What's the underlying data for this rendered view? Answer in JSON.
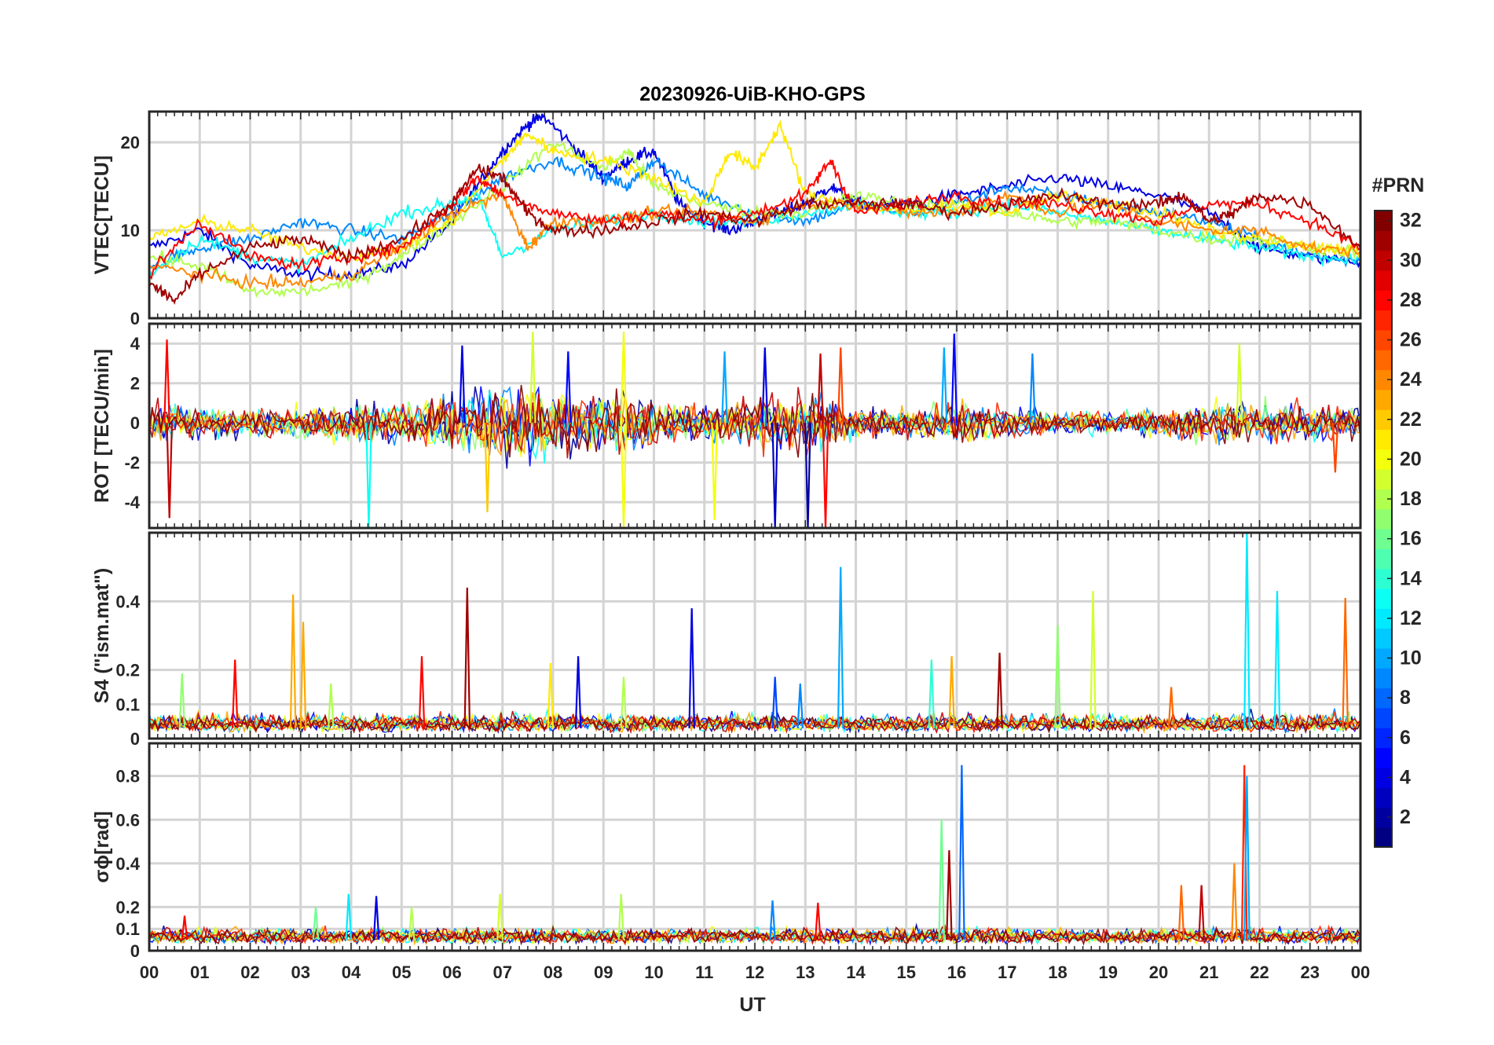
{
  "figure": {
    "title": "20230926-UiB-KHO-GPS",
    "x_label": "UT",
    "x_tick_labels": [
      "00",
      "01",
      "02",
      "03",
      "04",
      "05",
      "06",
      "07",
      "08",
      "09",
      "10",
      "11",
      "12",
      "13",
      "14",
      "15",
      "16",
      "17",
      "18",
      "19",
      "20",
      "21",
      "22",
      "23",
      "00"
    ],
    "colorbar": {
      "label": "#PRN",
      "colormap": "jet",
      "range": [
        1,
        32
      ],
      "tick_labels": [
        "2",
        "4",
        "6",
        "8",
        "10",
        "12",
        "14",
        "16",
        "18",
        "20",
        "22",
        "24",
        "26",
        "28",
        "30",
        "32"
      ],
      "tick_values": [
        2,
        4,
        6,
        8,
        10,
        12,
        14,
        16,
        18,
        20,
        22,
        24,
        26,
        28,
        30,
        32
      ]
    }
  },
  "chart_data": [
    {
      "type": "line",
      "title": "20230926-UiB-KHO-GPS",
      "xlabel": "UT",
      "ylabel": "VTEC[TECU]",
      "xlim": [
        0,
        24
      ],
      "ylim": [
        0,
        23.5
      ],
      "ytick_values": [
        0,
        10,
        20
      ],
      "ytick_labels": [
        "0",
        "10",
        "20"
      ],
      "grid": true,
      "series": [
        {
          "name": "PRN 4",
          "prn": 4,
          "x": [
            0,
            1,
            2,
            3,
            4,
            5,
            6,
            6.5,
            7,
            7.5,
            7.8,
            8.5,
            9,
            9.5,
            10,
            10.5,
            11,
            11.5,
            12,
            12.5,
            13,
            13.5,
            14,
            15,
            16,
            17,
            18,
            19,
            20,
            21,
            22,
            23,
            24
          ],
          "values": [
            8,
            10,
            6,
            5,
            5,
            6,
            11,
            15,
            19,
            22,
            23,
            19,
            16,
            18,
            19,
            13,
            11,
            10,
            11,
            12,
            13,
            15,
            13,
            13,
            14,
            15,
            16,
            15,
            14,
            12,
            8,
            7,
            6.5
          ]
        },
        {
          "name": "PRN 9",
          "prn": 9,
          "x": [
            0,
            1,
            2,
            3,
            4,
            5,
            6,
            7,
            8,
            9,
            9.5,
            10,
            11,
            12,
            13,
            14,
            15,
            16,
            17,
            18,
            19,
            20,
            21,
            22,
            23,
            24
          ],
          "values": [
            6,
            8,
            9,
            11,
            10,
            9,
            12,
            16,
            18,
            16,
            15,
            18,
            14,
            12,
            11,
            13,
            12,
            13,
            15,
            14,
            13,
            12,
            11,
            9,
            7,
            6.5
          ]
        },
        {
          "name": "PRN 13",
          "prn": 13,
          "x": [
            0,
            1,
            2,
            3,
            4,
            5,
            6,
            6.5,
            7,
            8,
            9,
            10,
            11,
            12,
            13,
            14,
            15,
            16,
            17,
            18,
            19,
            20,
            21,
            22,
            23,
            24
          ],
          "values": [
            5,
            9,
            7,
            6,
            9,
            12,
            13,
            14,
            7,
            10,
            11,
            12,
            11,
            11,
            12,
            13,
            12,
            12,
            13,
            12,
            11,
            10,
            9,
            8,
            7,
            6.8
          ]
        },
        {
          "name": "PRN 18",
          "prn": 18,
          "x": [
            0,
            1,
            2,
            3,
            4,
            5,
            6,
            7,
            8,
            9,
            9.5,
            10,
            11,
            12,
            13,
            14,
            15,
            16,
            17,
            18,
            19,
            20,
            21,
            22,
            23,
            24
          ],
          "values": [
            7,
            6,
            3,
            3,
            4,
            7,
            11,
            15,
            20,
            17,
            19,
            15,
            13,
            12,
            12,
            14,
            13,
            13,
            12,
            11,
            11,
            10,
            9,
            9,
            8,
            7.5
          ]
        },
        {
          "name": "PRN 21",
          "prn": 21,
          "x": [
            0,
            1,
            2,
            3,
            4,
            5,
            6,
            7,
            7.5,
            8,
            9,
            10,
            11,
            11.5,
            12,
            12.5,
            13,
            14,
            15,
            16,
            17,
            18,
            19,
            20,
            21,
            22,
            23,
            24
          ],
          "values": [
            9,
            11,
            10,
            8,
            7,
            8,
            11,
            18,
            21,
            19,
            18,
            16,
            13,
            19,
            17,
            22,
            14,
            13,
            12,
            13,
            12,
            14,
            13,
            12,
            10,
            9,
            8,
            7.8
          ]
        },
        {
          "name": "PRN 24",
          "prn": 24,
          "x": [
            0,
            1,
            2,
            3,
            4,
            5,
            6,
            7,
            7.5,
            8,
            9,
            10,
            11,
            12,
            13,
            14,
            15,
            16,
            17,
            18,
            19,
            20,
            21,
            22,
            23,
            24
          ],
          "values": [
            6,
            5,
            4,
            4,
            5,
            8,
            12,
            14,
            8,
            11,
            11,
            12,
            12,
            11,
            13,
            13,
            12,
            12,
            14,
            12,
            13,
            11,
            10,
            10,
            8,
            7.5
          ]
        },
        {
          "name": "PRN 28",
          "prn": 28,
          "x": [
            0,
            1,
            2,
            3,
            4,
            5,
            6,
            6.5,
            7,
            8,
            9,
            10,
            11,
            12,
            13,
            13.5,
            14,
            15,
            16,
            17,
            18,
            19,
            20,
            21,
            22,
            23,
            24
          ],
          "values": [
            5,
            11,
            7,
            6,
            7,
            8,
            13,
            16,
            14,
            12,
            11,
            12,
            11,
            12,
            14,
            18,
            12,
            13,
            14,
            13,
            13,
            12,
            11,
            13,
            13,
            11,
            8
          ]
        },
        {
          "name": "PRN 31",
          "prn": 31,
          "x": [
            0,
            0.5,
            1,
            2,
            3,
            4,
            5,
            6,
            6.5,
            7,
            7.5,
            8,
            9,
            10,
            11,
            12,
            13,
            14,
            15,
            16,
            17,
            18,
            19,
            20,
            20.5,
            21,
            21.5,
            22,
            23,
            24
          ],
          "values": [
            4,
            2,
            5,
            8,
            9,
            7,
            9,
            13,
            17,
            16,
            12,
            10,
            10,
            11,
            12,
            11,
            13,
            13,
            13,
            12,
            13,
            14,
            13,
            13,
            14,
            11,
            12,
            14,
            13,
            8
          ]
        }
      ]
    },
    {
      "type": "line",
      "ylabel": "ROT [TECU/min]",
      "xlim": [
        0,
        24
      ],
      "ylim": [
        -5.3,
        5
      ],
      "ytick_values": [
        -4,
        -2,
        0,
        2,
        4
      ],
      "ytick_labels": [
        "-4",
        "-2",
        "0",
        "2",
        "4"
      ],
      "grid": true,
      "baseline": 0,
      "noise_envelope": {
        "x": [
          0,
          1,
          2,
          3,
          4,
          5,
          6,
          7,
          8,
          9,
          10,
          11,
          12,
          13,
          14,
          15,
          16,
          17,
          18,
          19,
          20,
          21,
          22,
          23,
          24
        ],
        "amplitude": [
          0.8,
          0.7,
          0.6,
          0.7,
          0.8,
          0.9,
          1.2,
          1.6,
          1.5,
          1.4,
          1.0,
          0.7,
          1.0,
          1.3,
          0.8,
          0.6,
          1.0,
          0.7,
          0.5,
          0.5,
          0.6,
          0.9,
          0.9,
          0.8,
          0.6
        ]
      },
      "spikes": [
        {
          "x": 0.35,
          "value": 4.2,
          "prn": 28
        },
        {
          "x": 0.4,
          "value": -4.8,
          "prn": 30
        },
        {
          "x": 4.35,
          "value": -5.3,
          "prn": 13
        },
        {
          "x": 6.2,
          "value": 3.9,
          "prn": 4
        },
        {
          "x": 6.7,
          "value": -4.5,
          "prn": 22
        },
        {
          "x": 7.6,
          "value": 4.6,
          "prn": 19
        },
        {
          "x": 8.3,
          "value": 3.6,
          "prn": 5
        },
        {
          "x": 9.4,
          "value": 4.6,
          "prn": 20
        },
        {
          "x": 9.4,
          "value": -5.3,
          "prn": 20
        },
        {
          "x": 11.2,
          "value": -4.9,
          "prn": 20
        },
        {
          "x": 11.4,
          "value": 3.6,
          "prn": 10
        },
        {
          "x": 12.2,
          "value": 3.8,
          "prn": 4
        },
        {
          "x": 12.4,
          "value": -5.3,
          "prn": 3
        },
        {
          "x": 13.05,
          "value": -5.3,
          "prn": 2
        },
        {
          "x": 13.3,
          "value": 3.5,
          "prn": 30
        },
        {
          "x": 13.4,
          "value": -5.3,
          "prn": 28
        },
        {
          "x": 13.7,
          "value": 3.8,
          "prn": 26
        },
        {
          "x": 15.75,
          "value": 3.8,
          "prn": 10
        },
        {
          "x": 15.95,
          "value": 4.5,
          "prn": 5
        },
        {
          "x": 17.5,
          "value": 3.5,
          "prn": 9
        },
        {
          "x": 21.6,
          "value": 4.0,
          "prn": 19
        },
        {
          "x": 23.5,
          "value": -2.5,
          "prn": 26
        }
      ]
    },
    {
      "type": "line",
      "ylabel": "S4 (\"ism.mat\")",
      "xlim": [
        0,
        24
      ],
      "ylim": [
        0,
        0.6
      ],
      "ytick_values": [
        0,
        0.1,
        0.2,
        0.4
      ],
      "ytick_labels": [
        "0",
        "0.1",
        "0.2",
        "0.4"
      ],
      "grid": true,
      "baseline": 0.03,
      "spikes": [
        {
          "x": 0.65,
          "value": 0.19,
          "prn": 17
        },
        {
          "x": 1.7,
          "value": 0.23,
          "prn": 28
        },
        {
          "x": 2.85,
          "value": 0.42,
          "prn": 23
        },
        {
          "x": 3.05,
          "value": 0.34,
          "prn": 23
        },
        {
          "x": 3.6,
          "value": 0.16,
          "prn": 18
        },
        {
          "x": 5.4,
          "value": 0.24,
          "prn": 28
        },
        {
          "x": 6.3,
          "value": 0.44,
          "prn": 31
        },
        {
          "x": 7.95,
          "value": 0.22,
          "prn": 21
        },
        {
          "x": 8.5,
          "value": 0.24,
          "prn": 4
        },
        {
          "x": 9.4,
          "value": 0.18,
          "prn": 18
        },
        {
          "x": 10.75,
          "value": 0.38,
          "prn": 4
        },
        {
          "x": 12.4,
          "value": 0.18,
          "prn": 7
        },
        {
          "x": 12.9,
          "value": 0.16,
          "prn": 9
        },
        {
          "x": 13.7,
          "value": 0.5,
          "prn": 10
        },
        {
          "x": 15.5,
          "value": 0.23,
          "prn": 14
        },
        {
          "x": 15.9,
          "value": 0.24,
          "prn": 23
        },
        {
          "x": 16.85,
          "value": 0.25,
          "prn": 31
        },
        {
          "x": 18.0,
          "value": 0.33,
          "prn": 17
        },
        {
          "x": 18.7,
          "value": 0.43,
          "prn": 19
        },
        {
          "x": 20.25,
          "value": 0.15,
          "prn": 25
        },
        {
          "x": 21.75,
          "value": 0.6,
          "prn": 12
        },
        {
          "x": 22.35,
          "value": 0.43,
          "prn": 12
        },
        {
          "x": 23.7,
          "value": 0.41,
          "prn": 25
        }
      ]
    },
    {
      "type": "line",
      "ylabel": "σϕ[rad]",
      "xlim": [
        0,
        24
      ],
      "ylim": [
        0,
        0.95
      ],
      "ytick_values": [
        0,
        0.1,
        0.2,
        0.4,
        0.6,
        0.8
      ],
      "ytick_labels": [
        "0",
        "0.1",
        "0.2",
        "0.4",
        "0.6",
        "0.8"
      ],
      "grid": true,
      "baseline": 0.05,
      "spikes": [
        {
          "x": 0.7,
          "value": 0.16,
          "prn": 28
        },
        {
          "x": 3.3,
          "value": 0.2,
          "prn": 16
        },
        {
          "x": 3.95,
          "value": 0.26,
          "prn": 12
        },
        {
          "x": 4.5,
          "value": 0.25,
          "prn": 4
        },
        {
          "x": 5.2,
          "value": 0.2,
          "prn": 18
        },
        {
          "x": 6.95,
          "value": 0.26,
          "prn": 19
        },
        {
          "x": 9.35,
          "value": 0.26,
          "prn": 18
        },
        {
          "x": 12.35,
          "value": 0.23,
          "prn": 9
        },
        {
          "x": 13.25,
          "value": 0.22,
          "prn": 28
        },
        {
          "x": 15.7,
          "value": 0.6,
          "prn": 16
        },
        {
          "x": 15.85,
          "value": 0.46,
          "prn": 31
        },
        {
          "x": 16.1,
          "value": 0.85,
          "prn": 8
        },
        {
          "x": 20.45,
          "value": 0.3,
          "prn": 25
        },
        {
          "x": 20.85,
          "value": 0.3,
          "prn": 30
        },
        {
          "x": 21.5,
          "value": 0.4,
          "prn": 24
        },
        {
          "x": 21.7,
          "value": 0.85,
          "prn": 27
        },
        {
          "x": 21.75,
          "value": 0.8,
          "prn": 10
        }
      ]
    }
  ]
}
